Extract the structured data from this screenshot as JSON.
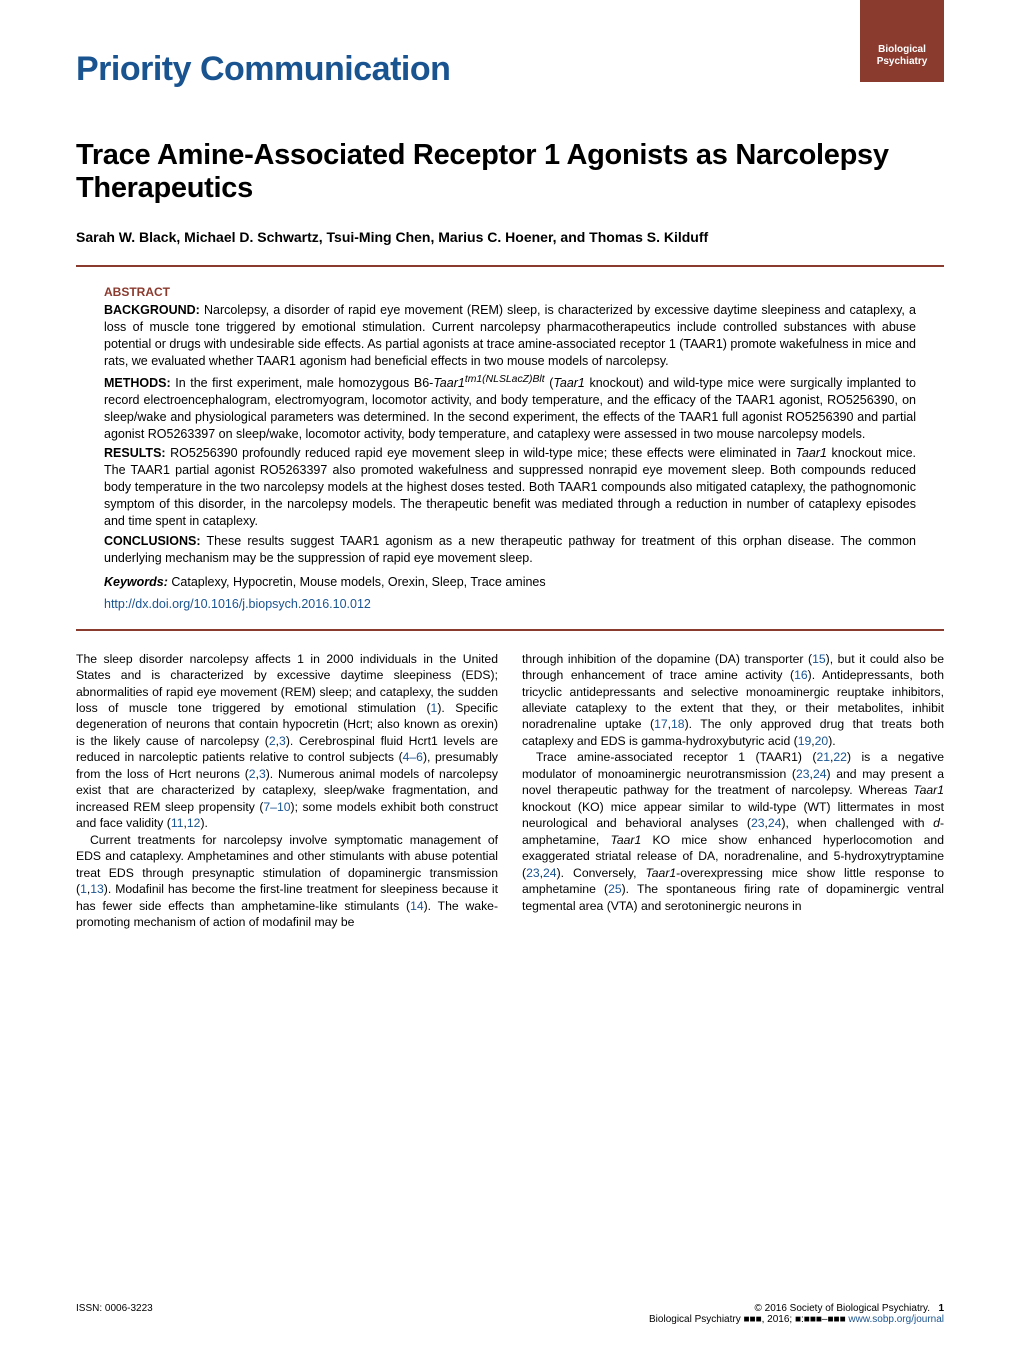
{
  "header": {
    "section_title": "Priority Communication",
    "journal_line1": "Biological",
    "journal_line2": "Psychiatry"
  },
  "title": "Trace Amine-Associated Receptor 1 Agonists as Narcolepsy Therapeutics",
  "authors": "Sarah W. Black, Michael D. Schwartz, Tsui-Ming Chen, Marius C. Hoener, and Thomas S. Kilduff",
  "abstract": {
    "heading": "ABSTRACT",
    "background_label": "BACKGROUND:",
    "background": "Narcolepsy, a disorder of rapid eye movement (REM) sleep, is characterized by excessive daytime sleepiness and cataplexy, a loss of muscle tone triggered by emotional stimulation. Current narcolepsy pharmacotherapeutics include controlled substances with abuse potential or drugs with undesirable side effects. As partial agonists at trace amine-associated receptor 1 (TAAR1) promote wakefulness in mice and rats, we evaluated whether TAAR1 agonism had beneficial effects in two mouse models of narcolepsy.",
    "methods_label": "METHODS:",
    "methods_part1": "In the first experiment, male homozygous B6-",
    "methods_italic1": "Taar1",
    "methods_super1": "tm1(NLSLacZ)Blt",
    "methods_part2": " (",
    "methods_italic2": "Taar1",
    "methods_part3": " knockout) and wild-type mice were surgically implanted to record electroencephalogram, electromyogram, locomotor activity, and body temperature, and the efficacy of the TAAR1 agonist, RO5256390, on sleep/wake and physiological parameters was determined. In the second experiment, the effects of the TAAR1 full agonist RO5256390 and partial agonist RO5263397 on sleep/wake, locomotor activity, body temperature, and cataplexy were assessed in two mouse narcolepsy models.",
    "results_label": "RESULTS:",
    "results_part1": "RO5256390 profoundly reduced rapid eye movement sleep in wild-type mice; these effects were eliminated in ",
    "results_italic1": "Taar1",
    "results_part2": " knockout mice. The TAAR1 partial agonist RO5263397 also promoted wakefulness and suppressed nonrapid eye movement sleep. Both compounds reduced body temperature in the two narcolepsy models at the highest doses tested. Both TAAR1 compounds also mitigated cataplexy, the pathognomonic symptom of this disorder, in the narcolepsy models. The therapeutic benefit was mediated through a reduction in number of cataplexy episodes and time spent in cataplexy.",
    "conclusions_label": "CONCLUSIONS:",
    "conclusions": "These results suggest TAAR1 agonism as a new therapeutic pathway for treatment of this orphan disease. The common underlying mechanism may be the suppression of rapid eye movement sleep.",
    "keywords_label": "Keywords:",
    "keywords": "Cataplexy, Hypocretin, Mouse models, Orexin, Sleep, Trace amines",
    "doi": "http://dx.doi.org/10.1016/j.biopsych.2016.10.012"
  },
  "body": {
    "col1_p1_a": "The sleep disorder narcolepsy affects 1 in 2000 individuals in the United States and is characterized by excessive daytime sleepiness (EDS); abnormalities of rapid eye movement (REM) sleep; and cataplexy, the sudden loss of muscle tone triggered by emotional stimulation (",
    "col1_p1_r1": "1",
    "col1_p1_b": "). Specific degeneration of neurons that contain hypocretin (Hcrt; also known as orexin) is the likely cause of narcolepsy (",
    "col1_p1_r2": "2",
    "col1_p1_c": ",",
    "col1_p1_r3": "3",
    "col1_p1_d": "). Cerebrospinal fluid Hcrt1 levels are reduced in narcoleptic patients relative to control subjects (",
    "col1_p1_r4": "4–6",
    "col1_p1_e": "), presumably from the loss of Hcrt neurons (",
    "col1_p1_r5": "2",
    "col1_p1_f": ",",
    "col1_p1_r6": "3",
    "col1_p1_g": "). Numerous animal models of narcolepsy exist that are characterized by cataplexy, sleep/wake fragmentation, and increased REM sleep propensity (",
    "col1_p1_r7": "7–10",
    "col1_p1_h": "); some models exhibit both construct and face validity (",
    "col1_p1_r8": "11",
    "col1_p1_i": ",",
    "col1_p1_r9": "12",
    "col1_p1_j": ").",
    "col1_p2_a": "Current treatments for narcolepsy involve symptomatic management of EDS and cataplexy. Amphetamines and other stimulants with abuse potential treat EDS through presynaptic stimulation of dopaminergic transmission (",
    "col1_p2_r1": "1",
    "col1_p2_b": ",",
    "col1_p2_r2": "13",
    "col1_p2_c": "). Modafinil has become the first-line treatment for sleepiness because it has fewer side effects than amphetamine-like stimulants (",
    "col1_p2_r3": "14",
    "col1_p2_d": "). The wake-promoting mechanism of action of modafinil may be",
    "col2_p1_a": "through inhibition of the dopamine (DA) transporter (",
    "col2_p1_r1": "15",
    "col2_p1_b": "), but it could also be through enhancement of trace amine activity (",
    "col2_p1_r2": "16",
    "col2_p1_c": "). Antidepressants, both tricyclic antidepressants and selective monoaminergic reuptake inhibitors, alleviate cataplexy to the extent that they, or their metabolites, inhibit noradrenaline uptake (",
    "col2_p1_r3": "17",
    "col2_p1_d": ",",
    "col2_p1_r4": "18",
    "col2_p1_e": "). The only approved drug that treats both cataplexy and EDS is gamma-hydroxybutyric acid (",
    "col2_p1_r5": "19",
    "col2_p1_f": ",",
    "col2_p1_r6": "20",
    "col2_p1_g": ").",
    "col2_p2_a": "Trace amine-associated receptor 1 (TAAR1) (",
    "col2_p2_r1": "21",
    "col2_p2_b": ",",
    "col2_p2_r2": "22",
    "col2_p2_c": ") is a negative modulator of monoaminergic neurotransmission (",
    "col2_p2_r3": "23",
    "col2_p2_d": ",",
    "col2_p2_r4": "24",
    "col2_p2_e": ") and may present a novel therapeutic pathway for the treatment of narcolepsy. Whereas ",
    "col2_p2_i1": "Taar1",
    "col2_p2_f": " knockout (KO) mice appear similar to wild-type (WT) littermates in most neurological and behavioral analyses (",
    "col2_p2_r5": "23",
    "col2_p2_g": ",",
    "col2_p2_r6": "24",
    "col2_p2_h": "), when challenged with ",
    "col2_p2_i2": "d",
    "col2_p2_i": "-amphetamine, ",
    "col2_p2_i3": "Taar1",
    "col2_p2_j": " KO mice show enhanced hyperlocomotion and exaggerated striatal release of DA, noradrenaline, and 5-hydroxytryptamine (",
    "col2_p2_r7": "23",
    "col2_p2_k": ",",
    "col2_p2_r8": "24",
    "col2_p2_l": "). Conversely, ",
    "col2_p2_i4": "Taar1",
    "col2_p2_m": "-overexpressing mice show little response to amphetamine (",
    "col2_p2_r9": "25",
    "col2_p2_n": "). The spontaneous firing rate of dopaminergic ventral tegmental area (VTA) and serotoninergic neurons in"
  },
  "footer": {
    "issn": "ISSN: 0006-3223",
    "copyright": "© 2016 Society of Biological Psychiatry.",
    "pagenum": "1",
    "citation_a": "Biological Psychiatry ",
    "citation_b": "■■■",
    "citation_c": ", 2016; ",
    "citation_d": "■:■■■–■■■",
    "link": "www.sobp.org/journal"
  }
}
